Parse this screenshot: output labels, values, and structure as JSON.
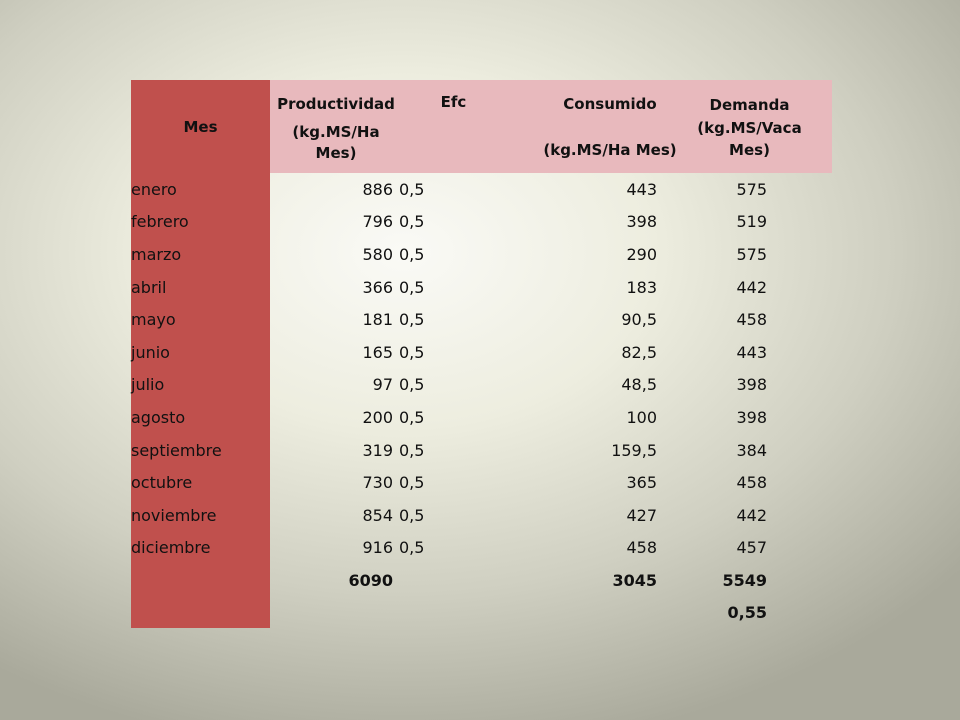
{
  "table": {
    "headers": {
      "mes": "Mes",
      "productividad": [
        "Productividad",
        "(kg.MS/Ha",
        "Mes)"
      ],
      "efc": "Efc",
      "consumido": [
        "Consumido",
        "(kg.MS/Ha Mes)"
      ],
      "demanda": [
        "Demanda",
        "(kg.MS/Vaca",
        "Mes)"
      ]
    },
    "rows": [
      {
        "mes": "enero",
        "productividad": "886",
        "efc": "0,5",
        "consumido": "443",
        "demanda": "575"
      },
      {
        "mes": "febrero",
        "productividad": "796",
        "efc": "0,5",
        "consumido": "398",
        "demanda": "519"
      },
      {
        "mes": "marzo",
        "productividad": "580",
        "efc": "0,5",
        "consumido": "290",
        "demanda": "575"
      },
      {
        "mes": "abril",
        "productividad": "366",
        "efc": "0,5",
        "consumido": "183",
        "demanda": "442"
      },
      {
        "mes": "mayo",
        "productividad": "181",
        "efc": "0,5",
        "consumido": "90,5",
        "demanda": "458"
      },
      {
        "mes": "junio",
        "productividad": "165",
        "efc": "0,5",
        "consumido": "82,5",
        "demanda": "443"
      },
      {
        "mes": "julio",
        "productividad": "97",
        "efc": "0,5",
        "consumido": "48,5",
        "demanda": "398"
      },
      {
        "mes": "agosto",
        "productividad": "200",
        "efc": "0,5",
        "consumido": "100",
        "demanda": "398"
      },
      {
        "mes": "septiembre",
        "productividad": "319",
        "efc": "0,5",
        "consumido": "159,5",
        "demanda": "384"
      },
      {
        "mes": "octubre",
        "productividad": "730",
        "efc": "0,5",
        "consumido": "365",
        "demanda": "458"
      },
      {
        "mes": "noviembre",
        "productividad": "854",
        "efc": "0,5",
        "consumido": "427",
        "demanda": "442"
      },
      {
        "mes": "diciembre",
        "productividad": "916",
        "efc": "0,5",
        "consumido": "458",
        "demanda": "457"
      }
    ],
    "totals": {
      "productividad": "6090",
      "consumido": "3045",
      "demanda": "5549"
    },
    "ratio": {
      "demanda": "0,55"
    }
  },
  "colors": {
    "mes_column": "#c0504d",
    "header_fill": "#e8b9bd"
  }
}
